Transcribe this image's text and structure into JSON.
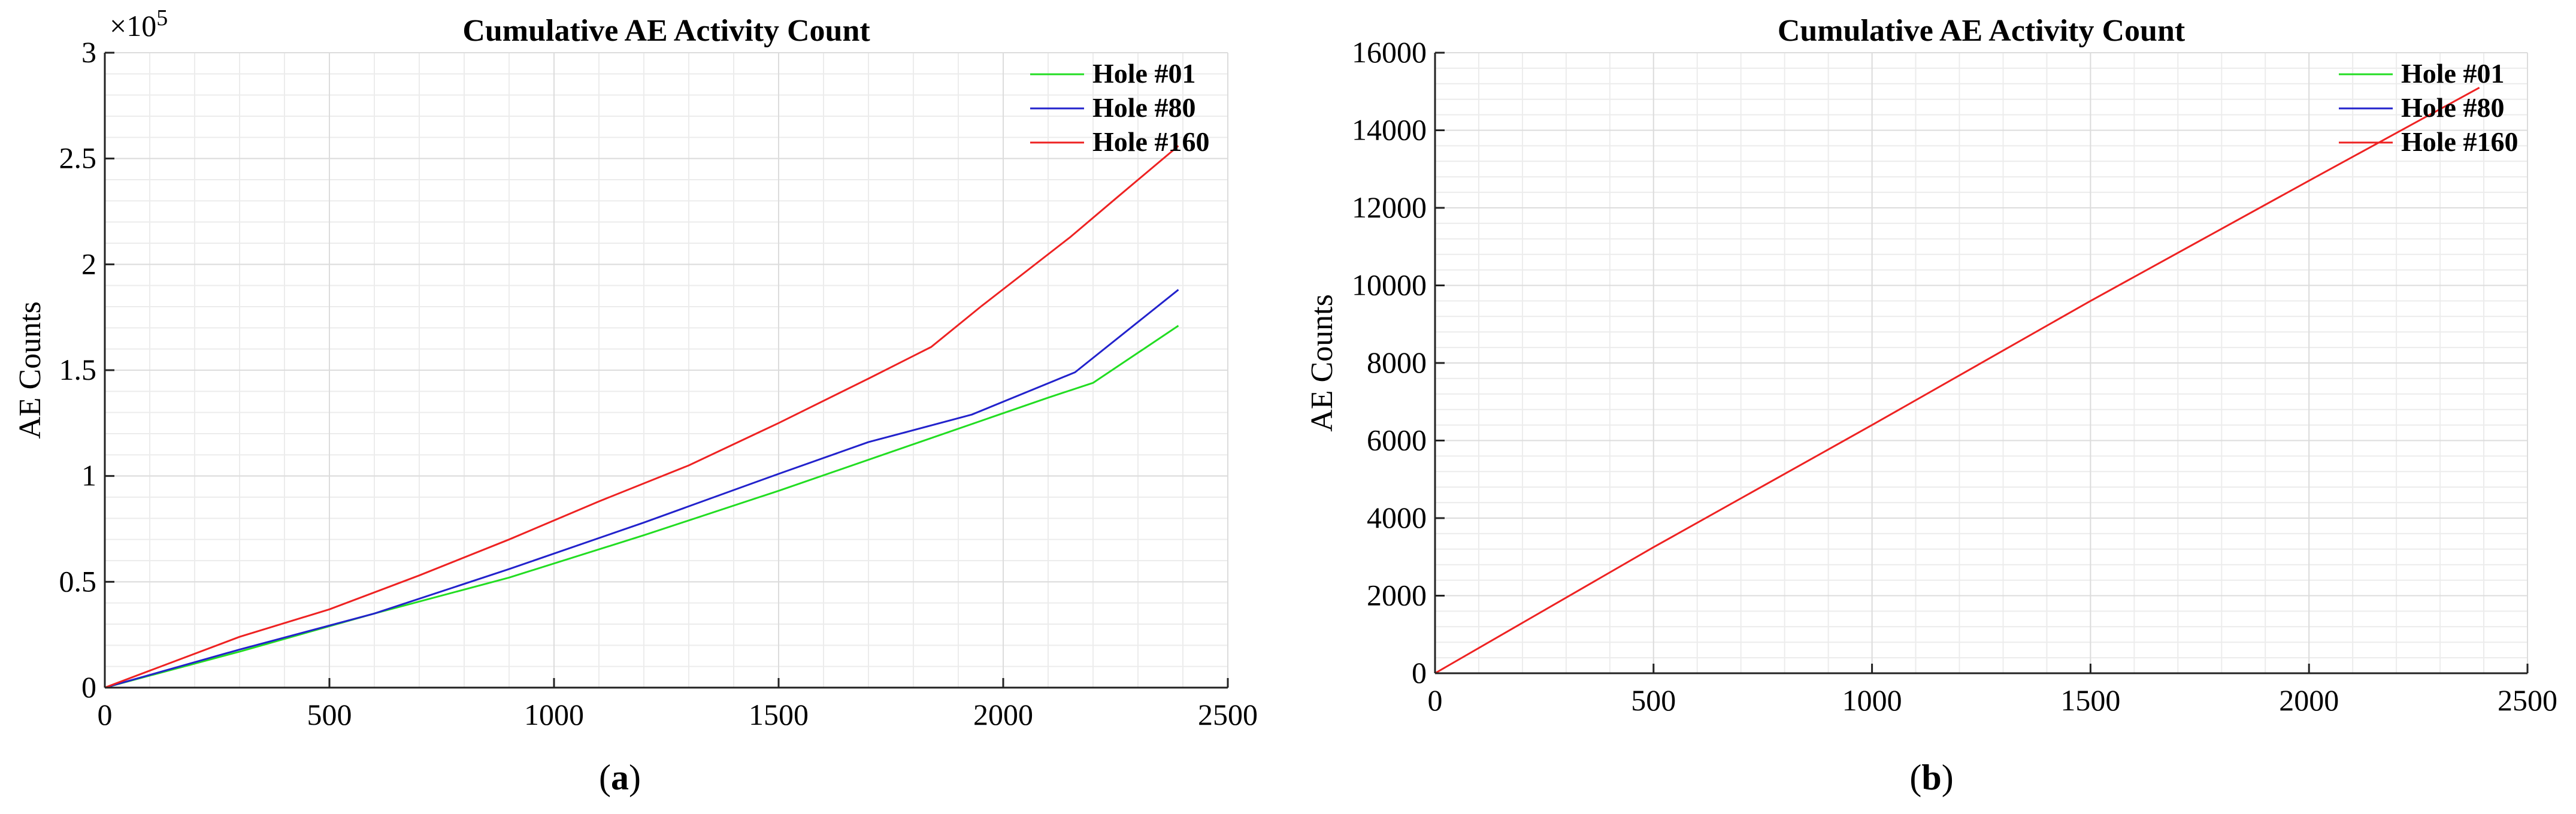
{
  "figure": {
    "captions": [
      {
        "open": "(",
        "letter": "a",
        "close": ")"
      },
      {
        "open": "(",
        "letter": "b",
        "close": ")"
      }
    ]
  },
  "chart_data": [
    {
      "type": "line",
      "title": "Cumulative AE Activity Count",
      "xlabel": "",
      "ylabel": "AE Counts",
      "xlim": [
        0,
        2500
      ],
      "ylim": [
        0,
        3
      ],
      "y_exponent_label": "×10",
      "y_exponent_power": "5",
      "xticks": [
        0,
        500,
        1000,
        1500,
        2000,
        2500
      ],
      "xtick_labels": [
        "0",
        "500",
        "1000",
        "1500",
        "2000",
        "2500"
      ],
      "yticks": [
        0,
        0.5,
        1,
        1.5,
        2,
        2.5,
        3
      ],
      "ytick_labels": [
        "0",
        "0.5",
        "1",
        "1.5",
        "2",
        "2.5",
        "3"
      ],
      "grid": true,
      "legend_position": "top-right",
      "series": [
        {
          "name": "Hole #01",
          "color": "#22dd22",
          "x": [
            0,
            300,
            600,
            900,
            1200,
            1500,
            1800,
            2100,
            2200,
            2390
          ],
          "y": [
            0,
            0.17,
            0.35,
            0.52,
            0.72,
            0.93,
            1.15,
            1.37,
            1.44,
            1.71
          ]
        },
        {
          "name": "Hole #80",
          "color": "#2222cc",
          "x": [
            0,
            300,
            600,
            900,
            1200,
            1500,
            1700,
            1930,
            2160,
            2390
          ],
          "y": [
            0,
            0.18,
            0.35,
            0.56,
            0.78,
            1.01,
            1.16,
            1.29,
            1.49,
            1.88
          ]
        },
        {
          "name": "Hole #160",
          "color": "#ee2222",
          "x": [
            0,
            100,
            300,
            500,
            700,
            900,
            1100,
            1300,
            1500,
            1700,
            1840,
            1950,
            2150,
            2250,
            2390
          ],
          "y": [
            0,
            0.08,
            0.24,
            0.37,
            0.53,
            0.7,
            0.88,
            1.05,
            1.25,
            1.46,
            1.61,
            1.8,
            2.13,
            2.31,
            2.56
          ]
        }
      ]
    },
    {
      "type": "line",
      "title": "Cumulative AE Activity Count",
      "xlabel": "",
      "ylabel": "AE Counts",
      "xlim": [
        0,
        2500
      ],
      "ylim": [
        0,
        16000
      ],
      "xticks": [
        0,
        500,
        1000,
        1500,
        2000,
        2500
      ],
      "xtick_labels": [
        "0",
        "500",
        "1000",
        "1500",
        "2000",
        "2500"
      ],
      "yticks": [
        0,
        2000,
        4000,
        6000,
        8000,
        10000,
        12000,
        14000,
        16000
      ],
      "ytick_labels": [
        "0",
        "2000",
        "4000",
        "6000",
        "8000",
        "10000",
        "12000",
        "14000",
        "16000"
      ],
      "grid": true,
      "legend_position": "top-right",
      "series": [
        {
          "name": "Hole #01",
          "color": "#22dd22",
          "x": [
            0,
            2500
          ],
          "y": [
            0,
            0
          ]
        },
        {
          "name": "Hole #80",
          "color": "#2222cc",
          "x": [
            0,
            2500
          ],
          "y": [
            0,
            0
          ]
        },
        {
          "name": "Hole #160",
          "color": "#ee2222",
          "x": [
            0,
            500,
            1000,
            1500,
            2000,
            2390
          ],
          "y": [
            0,
            3250,
            6400,
            9600,
            12700,
            15100
          ]
        }
      ]
    }
  ]
}
